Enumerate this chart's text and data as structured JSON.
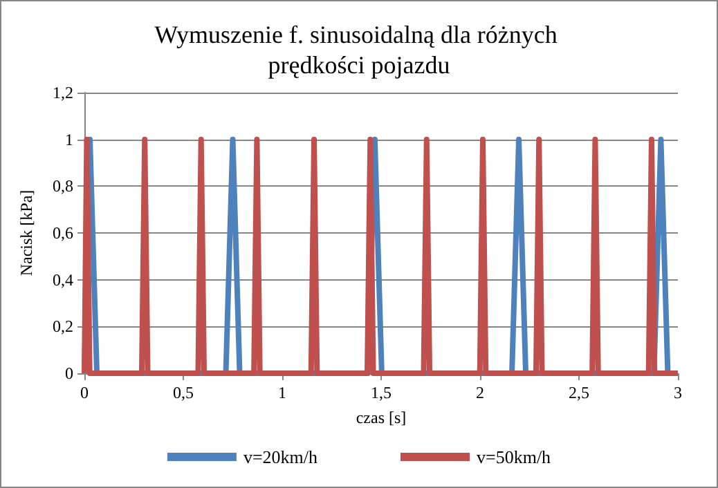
{
  "chart_data": {
    "type": "line",
    "title": "Wymuszenie f. sinusoidalną dla różnych prędkości pojazdu",
    "xlabel": "czas [s]",
    "ylabel": "Nacisk [kPa]",
    "xlim": [
      0,
      3
    ],
    "xticks": [
      0,
      {
        "value": 0.5,
        "label": "0,5"
      },
      1,
      {
        "value": 1.5,
        "label": "1,5"
      },
      2,
      {
        "value": 2.5,
        "label": "2,5"
      },
      3
    ],
    "ylim": [
      0,
      1.2
    ],
    "yticks": [
      0,
      {
        "value": 0.2,
        "label": "0,2"
      },
      {
        "value": 0.4,
        "label": "0,4"
      },
      {
        "value": 0.6,
        "label": "0,6"
      },
      {
        "value": 0.8,
        "label": "0,8"
      },
      1,
      {
        "value": 1.2,
        "label": "1,2"
      }
    ],
    "grid": "y",
    "legend": "bottom",
    "marker": "none",
    "line_style": "solid",
    "series": [
      {
        "name": "v=20km/h",
        "color": "#4f81bd",
        "x": [
          0,
          0.028,
          0.063,
          0.715,
          0.75,
          0.785,
          1.433,
          1.468,
          1.503,
          2.161,
          2.196,
          2.231,
          2.879,
          2.914,
          2.949,
          3
        ],
        "values": [
          0,
          1,
          0,
          0,
          1,
          0,
          0,
          1,
          0,
          0,
          1,
          0,
          0,
          1,
          0,
          0
        ]
      },
      {
        "name": "v=50km/h",
        "color": "#c0504d",
        "x": [
          0,
          0.012,
          0.027,
          0.29,
          0.305,
          0.32,
          0.575,
          0.59,
          0.605,
          0.857,
          0.872,
          0.887,
          1.146,
          1.161,
          1.176,
          1.43,
          1.445,
          1.46,
          1.715,
          1.73,
          1.745,
          1.999,
          2.014,
          2.029,
          2.283,
          2.298,
          2.313,
          2.567,
          2.582,
          2.597,
          2.852,
          2.867,
          2.882,
          3
        ],
        "values": [
          0,
          1,
          0,
          0,
          1,
          0,
          0,
          1,
          0,
          0,
          1,
          0,
          0,
          1,
          0,
          0,
          1,
          0,
          0,
          1,
          0,
          0,
          1,
          0,
          0,
          1,
          0,
          0,
          1,
          0,
          0,
          1,
          0,
          0
        ]
      }
    ]
  }
}
